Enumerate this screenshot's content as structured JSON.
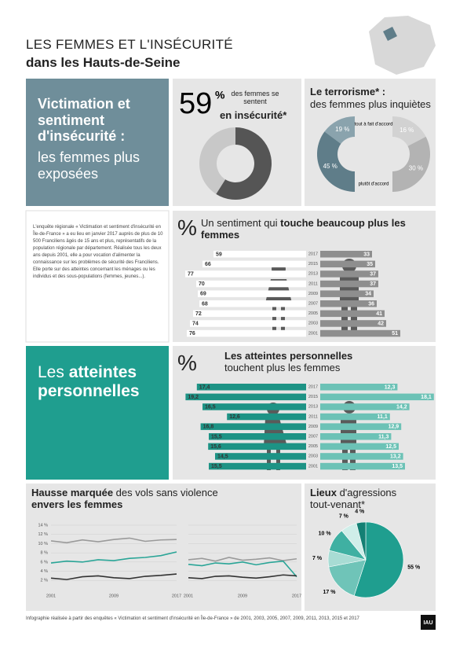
{
  "header": {
    "title": "LES FEMMES ET L'INSÉCURITÉ",
    "subtitle": "dans les Hauts-de-Seine"
  },
  "section1": {
    "bold": "Victimation et sentiment d'insécurité :",
    "light": "les femmes plus exposées"
  },
  "intro": "L'enquête régionale « Victimation et sentiment d'insécurité en Île-de-France » a eu lieu en janvier 2017 auprès de plus de 10 500 Franciliens âgés de 15 ans et plus, représentatifs de la population régionale par département. Réalisée tous les deux ans depuis 2001, elle a pour vocation d'alimenter la connaissance sur les problèmes de sécurité des Franciliens. Elle porte sur des atteintes concernant les ménages ou les individus et des sous-populations (femmes, jeunes...).",
  "section3": {
    "light": "Les",
    "bold": "atteintes personnelles"
  },
  "chart_data": [
    {
      "type": "gauge",
      "value": 59,
      "value_label": "59",
      "unit": "%",
      "text": "des femmes se sentent",
      "text_bold": "en insécurité*",
      "color": "#555555",
      "track_color": "#c8c8c8"
    },
    {
      "type": "half-donut",
      "title": "Le terrorisme* :",
      "subtitle": "des femmes plus inquiètes",
      "categories": [
        "tout à fait d'accord",
        "plutôt d'accord"
      ],
      "series": [
        {
          "color": [
            "#8aa3ad",
            "#5f7d89"
          ],
          "values": [
            19,
            45
          ],
          "value_labels": [
            "19 %",
            "45 %"
          ]
        },
        {
          "color": [
            "#d2d2d2",
            "#b3b3b3"
          ],
          "values": [
            16,
            30
          ],
          "value_labels": [
            "16 %",
            "30 %"
          ]
        }
      ]
    },
    {
      "type": "butterfly",
      "title": "Un sentiment qui ",
      "title_bold": "touche beaucoup plus les femmes",
      "symbol": "%",
      "categories": [
        "2017",
        "2015",
        "2013",
        "2011",
        "2009",
        "2007",
        "2005",
        "2003",
        "2001"
      ],
      "xlim": [
        0,
        80
      ],
      "series": [
        {
          "color": "#ffffff",
          "values": [
            59,
            66,
            77,
            70,
            69,
            68,
            72,
            74,
            76
          ]
        },
        {
          "color": "#8e8e8e",
          "values": [
            33,
            35,
            37,
            37,
            34,
            36,
            41,
            42,
            51
          ]
        }
      ]
    },
    {
      "type": "butterfly",
      "title": "Les atteintes personnelles",
      "title_light": "touchent plus les femmes",
      "symbol": "%",
      "categories": [
        "2017",
        "2015",
        "2013",
        "2011",
        "2009",
        "2007",
        "2005",
        "2003",
        "2001"
      ],
      "xlim": [
        0,
        20
      ],
      "series": [
        {
          "color": "#1d9385",
          "values": [
            17.4,
            19.2,
            16.5,
            12.6,
            16.8,
            15.5,
            15.6,
            14.5,
            15.5
          ],
          "value_labels": [
            "17,4",
            "19,2",
            "16,5",
            "12,6",
            "16,8",
            "15,5",
            "15,6",
            "14,5",
            "15,5"
          ]
        },
        {
          "color": "#6cc2b6",
          "values": [
            12.3,
            18.1,
            14.2,
            11.1,
            12.9,
            11.3,
            12.5,
            13.2,
            13.5
          ],
          "value_labels": [
            "12,3",
            "18,1",
            "14,2",
            "11,1",
            "12,9",
            "11,3",
            "12,5",
            "13,2",
            "13,5"
          ]
        }
      ]
    },
    {
      "type": "line",
      "title_bold": "Hausse marquée",
      "title": " des vols sans violence",
      "title2": "envers les femmes",
      "x": [
        2001,
        2003,
        2005,
        2007,
        2009,
        2011,
        2013,
        2015,
        2017
      ],
      "xlim": [
        2001,
        2017
      ],
      "xticks": [
        2001,
        2009,
        2017
      ],
      "ylim": [
        0,
        14
      ],
      "yticks": [
        {
          "value": 2,
          "label": "2 %"
        },
        {
          "value": 4,
          "label": "4 %"
        },
        {
          "value": 6,
          "label": "6 %"
        },
        {
          "value": 8,
          "label": "8 %"
        },
        {
          "value": 10,
          "label": "10 %"
        },
        {
          "value": 12,
          "label": "12 %"
        },
        {
          "value": 14,
          "label": "14 %"
        }
      ],
      "series": [
        {
          "color": "#9a9a9a",
          "values": [
            10.6,
            10.2,
            10.8,
            10.4,
            10.9,
            11.2,
            10.5,
            10.8,
            10.9
          ]
        },
        {
          "color": "#2aa597",
          "values": [
            5.8,
            6.2,
            6.0,
            6.5,
            6.3,
            6.8,
            7.0,
            7.4,
            8.2
          ]
        },
        {
          "color": "#333333",
          "values": [
            2.5,
            2.2,
            2.8,
            3.0,
            2.6,
            2.4,
            2.9,
            3.1,
            3.4
          ]
        }
      ]
    },
    {
      "type": "line",
      "x": [
        2001,
        2003,
        2005,
        2007,
        2009,
        2011,
        2013,
        2015,
        2017
      ],
      "xlim": [
        2001,
        2017
      ],
      "xticks": [
        2001,
        2009,
        2017
      ],
      "ylim": [
        0,
        14
      ],
      "series": [
        {
          "color": "#9a9a9a",
          "values": [
            6.5,
            6.8,
            6.2,
            7.0,
            6.4,
            6.6,
            6.9,
            6.3,
            6.7
          ]
        },
        {
          "color": "#2aa597",
          "values": [
            5.5,
            5.2,
            5.8,
            5.6,
            6.0,
            5.4,
            5.9,
            6.2,
            2.8
          ]
        },
        {
          "color": "#333333",
          "values": [
            2.6,
            2.4,
            2.9,
            3.0,
            2.7,
            2.5,
            2.8,
            3.2,
            3.0
          ]
        }
      ]
    },
    {
      "type": "pie",
      "title_bold": "Lieux",
      "title": " d'agressions",
      "title2": "tout-venant*",
      "values": [
        55,
        17,
        7,
        10,
        7,
        4
      ],
      "value_labels": [
        "55 %",
        "17 %",
        "7 %",
        "10 %",
        "7 %",
        "4 %"
      ],
      "colors": [
        "#1f9e8f",
        "#6fc4b8",
        "#a8dcd4",
        "#3fb0a2",
        "#cfeee9",
        "#148074"
      ]
    }
  ],
  "footer": {
    "source": "Infographie réalisée à partir des enquêtes « Victimation et sentiment d'insécurité en Île-de-France » de 2001, 2003, 2005, 2007, 2009, 2011, 2013, 2015 et 2017",
    "logo": "IAU"
  }
}
